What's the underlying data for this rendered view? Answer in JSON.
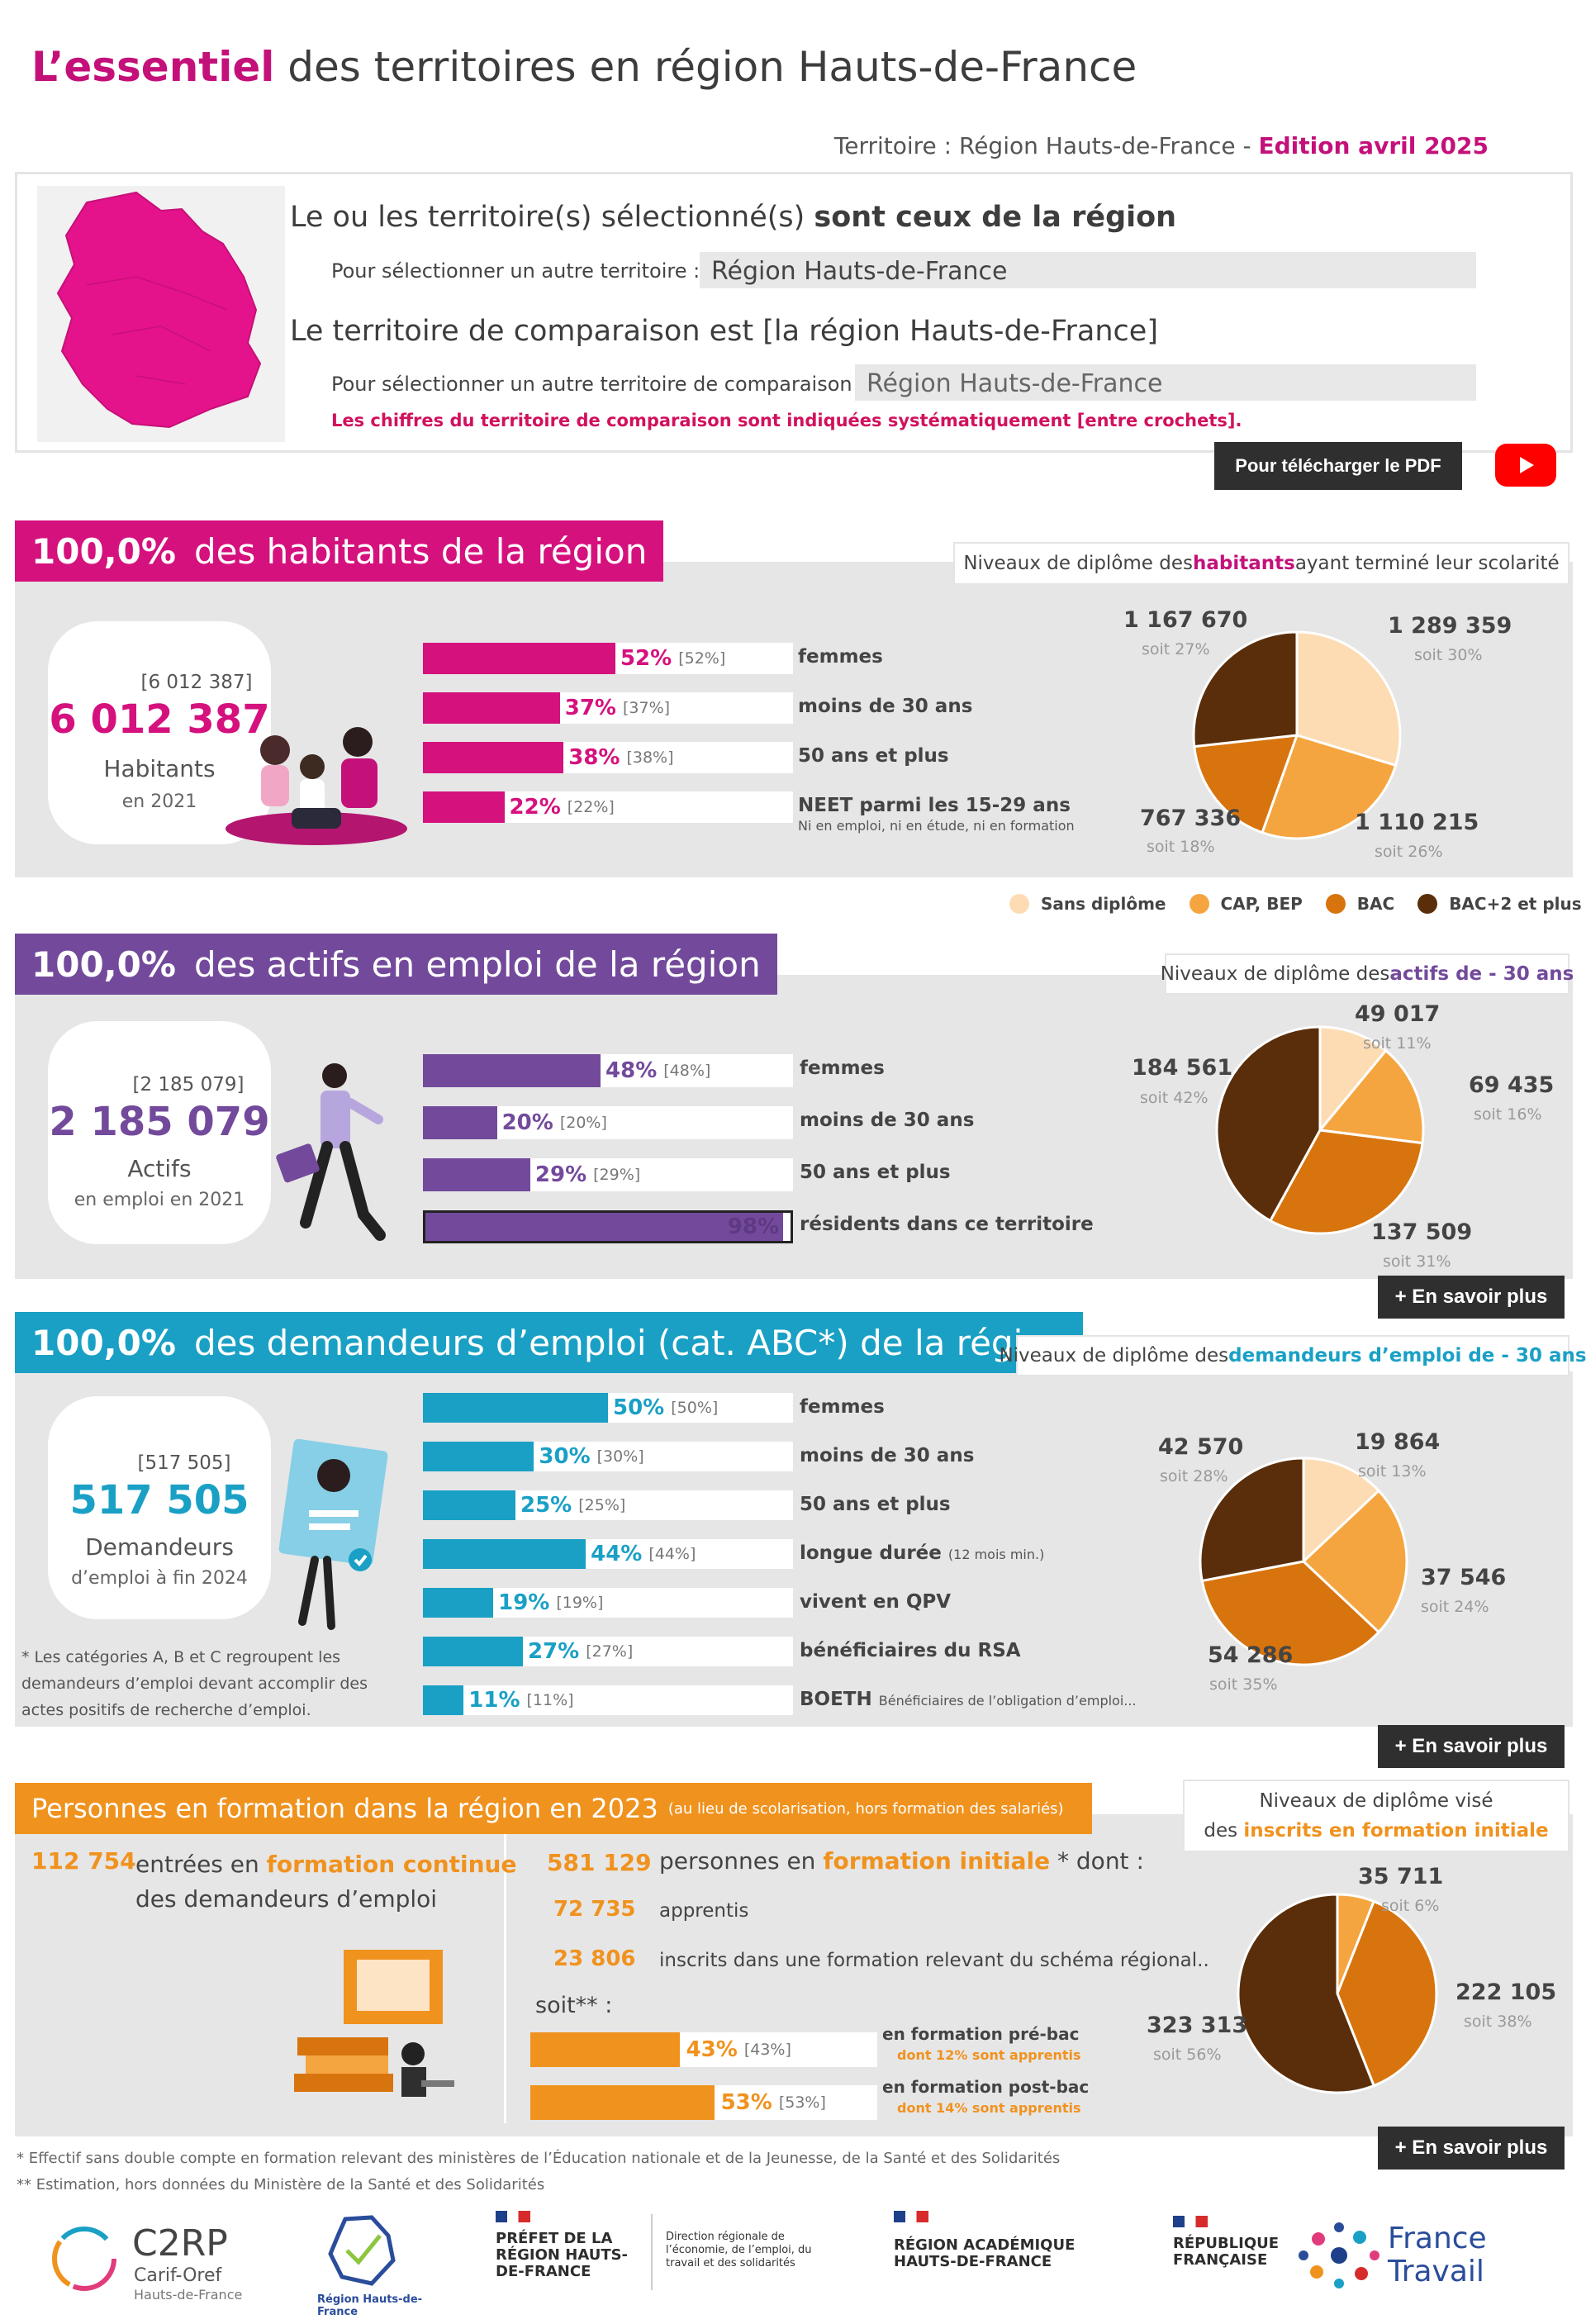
{
  "header": {
    "title_bold": "L’essentiel",
    "title_rest": " des territoires en région Hauts-de-France",
    "territory_label": "Territoire :  Région Hauts-de-France - ",
    "edition": "Edition avril 2025"
  },
  "selection": {
    "line1_pre": "Le ou les territoire(s) sélectionné(s) ",
    "line1_post": "sont ceux de la région",
    "select_label": "Pour sélectionner un autre territoire :",
    "select_value": "Région Hauts-de-France",
    "line2": "Le territoire de comparaison est  [la région  Hauts-de-France]",
    "compare_label": "Pour sélectionner un autre territoire de comparaison :",
    "compare_value": "Région Hauts-de-France",
    "note": "Les chiffres du territoire de comparaison sont indiquées systématiquement [entre crochets].",
    "pdf_button": "Pour télécharger le PDF",
    "youtube_icon": "youtube-play-icon"
  },
  "habitants": {
    "head_pct": "100,0%",
    "head_text": "des habitants de la région",
    "pie_title_pre": "Niveaux de diplôme des ",
    "pie_title_bold": "habitants",
    "pie_title_post": " ayant terminé leur scolarité",
    "bracket": "[6 012 387]",
    "value": "6 012 387",
    "label": "Habitants",
    "sub": "en 2021",
    "bars": [
      {
        "pct": 52,
        "txt": "52%",
        "cmp": "[52%]",
        "label": "femmes",
        "small": ""
      },
      {
        "pct": 37,
        "txt": "37%",
        "cmp": "[37%]",
        "label": "moins de 30 ans",
        "small": ""
      },
      {
        "pct": 38,
        "txt": "38%",
        "cmp": "[38%]",
        "label": "50 ans et plus",
        "small": ""
      },
      {
        "pct": 22,
        "txt": "22%",
        "cmp": "[22%]",
        "label": "NEET parmi les 15-29 ans",
        "small": "Ni en emploi, ni en étude, ni en formation"
      }
    ],
    "pie": [
      {
        "value": "1 289 359",
        "share": "soit 30%",
        "frac": 0.3,
        "color": "#fddcb3"
      },
      {
        "value": "1 110 215",
        "share": "soit 26%",
        "frac": 0.26,
        "color": "#f5a540"
      },
      {
        "value": "767 336",
        "share": "soit 18%",
        "frac": 0.18,
        "color": "#d8740e"
      },
      {
        "value": "1 167 670",
        "share": "soit 27%",
        "frac": 0.27,
        "color": "#5a2e0a"
      }
    ],
    "legend": [
      {
        "label": "Sans diplôme",
        "color": "#fddcb3"
      },
      {
        "label": "CAP, BEP",
        "color": "#f5a540"
      },
      {
        "label": "BAC",
        "color": "#d8740e"
      },
      {
        "label": "BAC+2 et plus",
        "color": "#5a2e0a"
      }
    ]
  },
  "actifs": {
    "head_pct": "100,0%",
    "head_text": "des actifs en emploi de la région",
    "pie_title_pre": "Niveaux de diplôme des ",
    "pie_title_bold": "actifs de - 30 ans",
    "bracket": "[2 185 079]",
    "value": "2 185 079",
    "label": "Actifs",
    "sub": "en emploi en 2021",
    "bars": [
      {
        "pct": 48,
        "txt": "48%",
        "cmp": "[48%]",
        "label": "femmes"
      },
      {
        "pct": 20,
        "txt": "20%",
        "cmp": "[20%]",
        "label": "moins de 30 ans"
      },
      {
        "pct": 29,
        "txt": "29%",
        "cmp": "[29%]",
        "label": "50 ans et plus"
      },
      {
        "pct": 98,
        "txt": "98%",
        "cmp": "",
        "label": "résidents dans ce territoire"
      }
    ],
    "pie": [
      {
        "value": "49 017",
        "share": "soit 11%",
        "frac": 0.11,
        "color": "#fddcb3"
      },
      {
        "value": "69 435",
        "share": "soit 16%",
        "frac": 0.16,
        "color": "#f5a540"
      },
      {
        "value": "137 509",
        "share": "soit 31%",
        "frac": 0.31,
        "color": "#d8740e"
      },
      {
        "value": "184 561",
        "share": "soit 42%",
        "frac": 0.42,
        "color": "#5a2e0a"
      }
    ],
    "more": "+ En savoir plus"
  },
  "demandeurs": {
    "head_pct": "100,0%",
    "head_text": "des demandeurs d’emploi (cat. ABC*) de la région",
    "pie_title_pre": "Niveaux de diplôme des ",
    "pie_title_bold": "demandeurs d’emploi de - 30 ans",
    "bracket": "[517 505]",
    "value": "517 505",
    "label": "Demandeurs",
    "sub": "d’emploi à fin 2024",
    "footnote": "* Les catégories A, B et C regroupent les demandeurs d’emploi devant accomplir des actes positifs de recherche d’emploi.",
    "bars": [
      {
        "pct": 50,
        "txt": "50%",
        "cmp": "[50%]",
        "label": "femmes",
        "small": ""
      },
      {
        "pct": 30,
        "txt": "30%",
        "cmp": "[30%]",
        "label": "moins de 30 ans",
        "small": ""
      },
      {
        "pct": 25,
        "txt": "25%",
        "cmp": "[25%]",
        "label": "50 ans et plus",
        "small": ""
      },
      {
        "pct": 44,
        "txt": "44%",
        "cmp": "[44%]",
        "label": "longue durée ",
        "small": "(12 mois min.)"
      },
      {
        "pct": 19,
        "txt": "19%",
        "cmp": "[19%]",
        "label": "vivent en QPV",
        "small": ""
      },
      {
        "pct": 27,
        "txt": "27%",
        "cmp": "[27%]",
        "label": "bénéficiaires du RSA",
        "small": ""
      },
      {
        "pct": 11,
        "txt": "11%",
        "cmp": "[11%]",
        "label": "BOETH ",
        "small": "Bénéficiaires de l’obligation d’emploi..."
      }
    ],
    "pie": [
      {
        "value": "19 864",
        "share": "soit 13%",
        "frac": 0.13,
        "color": "#fddcb3"
      },
      {
        "value": "37 546",
        "share": "soit 24%",
        "frac": 0.24,
        "color": "#f5a540"
      },
      {
        "value": "54 286",
        "share": "soit 35%",
        "frac": 0.35,
        "color": "#d8740e"
      },
      {
        "value": "42 570",
        "share": "soit 28%",
        "frac": 0.28,
        "color": "#5a2e0a"
      }
    ],
    "more": "+ En savoir plus"
  },
  "formation": {
    "head_text": "Personnes en formation dans la région en 2023",
    "head_small": "(au lieu de scolarisation, hors formation des salariés)",
    "pie_title_1": "Niveaux de diplôme visé",
    "pie_title_2_pre": "des ",
    "pie_title_2_bold": "inscrits en formation initiale",
    "continue_num": "112 754",
    "continue_pre": "entrées en ",
    "continue_hl": "formation continue",
    "continue_post": "des demandeurs d’emploi",
    "initiale_num": "581 129",
    "initiale_pre": "personnes en ",
    "initiale_hl": "formation initiale",
    "initiale_post": " * dont :",
    "appr_num": "72 735",
    "appr_lbl": "apprentis",
    "schema_num": "23 806",
    "schema_lbl": "inscrits dans une formation relevant du schéma régional..",
    "soit": "soit** :",
    "bars": [
      {
        "pct": 43,
        "txt": "43%",
        "cmp": "[43%]",
        "label": "en formation pré-bac",
        "small": "dont 12% sont apprentis"
      },
      {
        "pct": 53,
        "txt": "53%",
        "cmp": "[53%]",
        "label": "en formation post-bac",
        "small": "dont 14% sont apprentis"
      }
    ],
    "pie": [
      {
        "value": "35 711",
        "share": "soit 6%",
        "frac": 0.06,
        "color": "#f5a540"
      },
      {
        "value": "222 105",
        "share": "soit 38%",
        "frac": 0.38,
        "color": "#d8740e"
      },
      {
        "value": "323 313",
        "share": "soit 56%",
        "frac": 0.56,
        "color": "#5a2e0a"
      }
    ],
    "more": "+ En savoir plus"
  },
  "footnotes": {
    "f1": "* Effectif sans double compte en formation relevant des ministères de l’Éducation nationale et de la Jeunesse, de la Santé et des Solidarités",
    "f2": "** Estimation, hors données du Ministère de la Santé et des Solidarités"
  },
  "logos": {
    "c2rp": "C2RP",
    "c2rp_sub1": "Carif-Oref",
    "c2rp_sub2": "Hauts-de-France",
    "region": "Région Hauts-de-France",
    "prefet": "PRÉFET DE LA RÉGION HAUTS-DE-FRANCE",
    "dreets": "Direction régionale de l’économie, de l’emploi, du travail et des solidarités",
    "academie": "RÉGION ACADÉMIQUE HAUTS-DE-FRANCE",
    "republique": "RÉPUBLIQUE FRANÇAISE",
    "ft1": "France",
    "ft2": "Travail"
  },
  "colors": {
    "pink": "#d5117e",
    "purple": "#734a9b",
    "blue": "#1aa0c5",
    "orange": "#f0921e"
  }
}
